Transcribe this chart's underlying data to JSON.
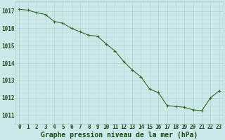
{
  "x": [
    0,
    1,
    2,
    3,
    4,
    5,
    6,
    7,
    8,
    9,
    10,
    11,
    12,
    13,
    14,
    15,
    16,
    17,
    18,
    19,
    20,
    21,
    22,
    23
  ],
  "y": [
    1017.1,
    1017.05,
    1016.9,
    1016.8,
    1016.4,
    1016.3,
    1016.0,
    1015.8,
    1015.6,
    1015.55,
    1015.1,
    1014.7,
    1014.1,
    1013.6,
    1013.2,
    1012.5,
    1012.3,
    1011.55,
    1011.5,
    1011.45,
    1011.3,
    1011.25,
    1012.0,
    1012.4
  ],
  "line_color": "#2d6a2d",
  "marker": "+",
  "marker_color": "#2d6a2d",
  "bg_color": "#cce8e8",
  "grid_major_color": "#aacccc",
  "grid_minor_color": "#bbdddd",
  "xlabel": "Graphe pression niveau de la mer (hPa)",
  "xlabel_color": "#1a4a1a",
  "xlabel_fontsize": 7,
  "ylabel_ticks": [
    1011,
    1012,
    1013,
    1014,
    1015,
    1016,
    1017
  ],
  "ylim": [
    1010.5,
    1017.55
  ],
  "xlim": [
    -0.5,
    23.5
  ],
  "tick_fontsize": 5.5,
  "line_color_dark": "#1a4a1a"
}
